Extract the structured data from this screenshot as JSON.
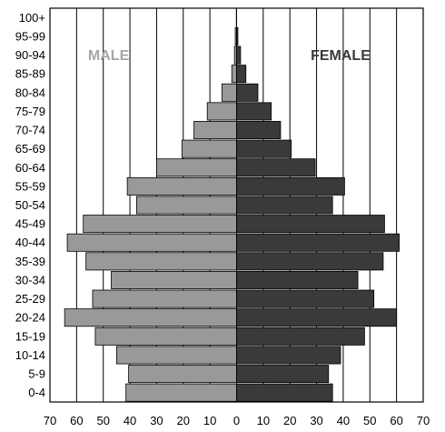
{
  "chart_data": {
    "type": "bar",
    "orientation": "horizontal",
    "title": "",
    "xlabel": "",
    "ylabel": "",
    "labels": {
      "male": "MALE",
      "female": "FEMALE"
    },
    "categories": [
      "100+",
      "95-99",
      "90-94",
      "85-89",
      "80-84",
      "75-79",
      "70-74",
      "65-69",
      "60-64",
      "55-59",
      "50-54",
      "45-49",
      "40-44",
      "35-39",
      "30-34",
      "25-29",
      "20-24",
      "15-19",
      "10-14",
      "5-9",
      "0-4"
    ],
    "series": [
      {
        "name": "MALE",
        "color": "#999999",
        "values": [
          0.1,
          0.5,
          0.8,
          1.8,
          5.5,
          11,
          16,
          20.5,
          30,
          41,
          37.5,
          57.5,
          63.5,
          56.5,
          47,
          54,
          64.5,
          53,
          45,
          40.5,
          41.5
        ]
      },
      {
        "name": "FEMALE",
        "color": "#3a3a3a",
        "values": [
          0,
          0.5,
          1.5,
          3.5,
          8,
          13,
          16.5,
          20.5,
          29.5,
          40.5,
          36,
          55.5,
          61,
          55,
          45.5,
          51.5,
          60,
          48,
          39,
          34.5,
          36
        ]
      }
    ],
    "xlim": [
      -70,
      70
    ],
    "xticks": [
      "70",
      "60",
      "50",
      "40",
      "30",
      "20",
      "10",
      "0",
      "10",
      "20",
      "30",
      "40",
      "50",
      "60",
      "70"
    ],
    "grid": "vertical"
  }
}
